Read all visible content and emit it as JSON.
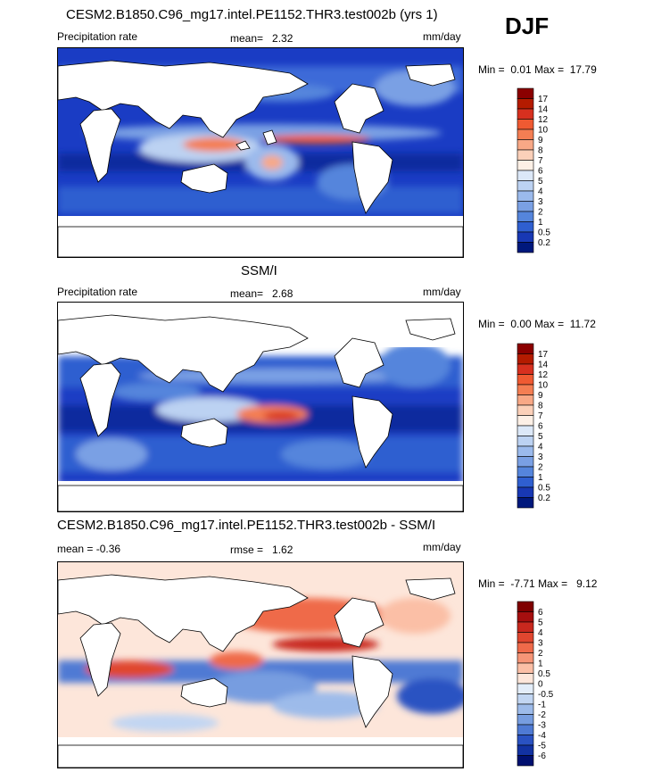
{
  "season": "DJF",
  "panels": [
    {
      "title": "CESM2.B1850.C96_mg17.intel.PE1152.THR3.test002b (yrs 1)",
      "left_label": "Precipitation rate",
      "stat_label": "mean=",
      "stat_value": "2.32",
      "units": "mm/day",
      "min_label": "Min =",
      "min_value": "0.01",
      "max_label": "Max =",
      "max_value": "17.79",
      "colorbar": {
        "labels": [
          "17",
          "14",
          "12",
          "10",
          "9",
          "8",
          "7",
          "6",
          "5",
          "4",
          "3",
          "2",
          "1",
          "0.5",
          "0.2"
        ],
        "colors": [
          "#8b0000",
          "#b41b00",
          "#d7301f",
          "#ef5a32",
          "#f47e53",
          "#f8a886",
          "#fbd0b9",
          "#fdf0e6",
          "#dce8f8",
          "#bcd2f2",
          "#9bbaec",
          "#7aa0e4",
          "#5585dc",
          "#2f5fd0",
          "#1838b4",
          "#00187c"
        ]
      }
    },
    {
      "title": "SSM/I",
      "left_label": "Precipitation rate",
      "stat_label": "mean=",
      "stat_value": "2.68",
      "units": "mm/day",
      "min_label": "Min =",
      "min_value": "0.00",
      "max_label": "Max =",
      "max_value": "11.72",
      "colorbar": {
        "labels": [
          "17",
          "14",
          "12",
          "10",
          "9",
          "8",
          "7",
          "6",
          "5",
          "4",
          "3",
          "2",
          "1",
          "0.5",
          "0.2"
        ],
        "colors": [
          "#8b0000",
          "#b41b00",
          "#d7301f",
          "#ef5a32",
          "#f47e53",
          "#f8a886",
          "#fbd0b9",
          "#fdf0e6",
          "#dce8f8",
          "#bcd2f2",
          "#9bbaec",
          "#7aa0e4",
          "#5585dc",
          "#2f5fd0",
          "#1838b4",
          "#00187c"
        ]
      }
    },
    {
      "title": "CESM2.B1850.C96_mg17.intel.PE1152.THR3.test002b - SSM/I",
      "left_label": "mean =  -0.36",
      "stat_label": "rmse =",
      "stat_value": "1.62",
      "units": "mm/day",
      "min_label": "Min =",
      "min_value": "-7.71",
      "max_label": "Max =",
      "max_value": "9.12",
      "colorbar": {
        "labels": [
          "6",
          "5",
          "4",
          "3",
          "2",
          "1",
          "0.5",
          "0",
          "-0.5",
          "-1",
          "-2",
          "-3",
          "-4",
          "-5",
          "-6"
        ],
        "colors": [
          "#7f0000",
          "#a50f0f",
          "#c8281e",
          "#e0462f",
          "#ef6a4a",
          "#f69577",
          "#fbbfa6",
          "#fde6da",
          "#e3edf9",
          "#c2d6f2",
          "#9dbbea",
          "#779de0",
          "#4f7ad4",
          "#2a52c2",
          "#1232a2",
          "#001070"
        ]
      }
    }
  ]
}
